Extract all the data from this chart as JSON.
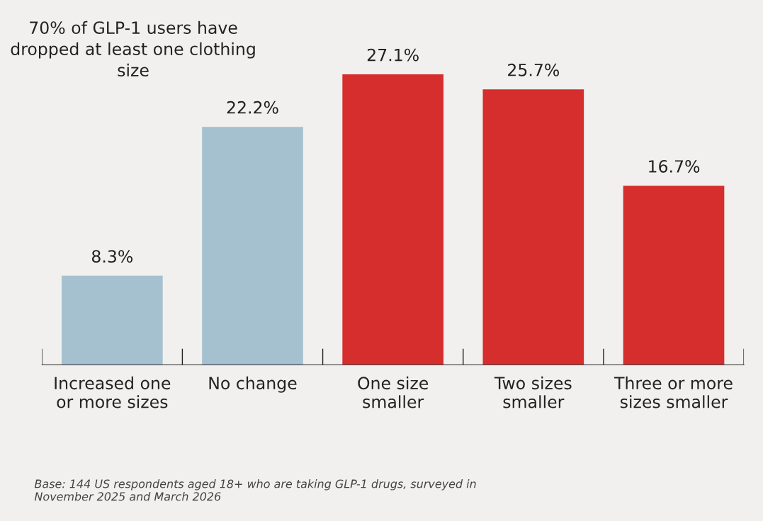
{
  "chart_data": {
    "type": "bar",
    "title": "70% of GLP-1 users have dropped at least one clothing size",
    "categories": [
      "Increased one\nor more sizes",
      "No change",
      "One size\nsmaller",
      "Two sizes\nsmaller",
      "Three or more\nsizes smaller"
    ],
    "values": [
      8.3,
      22.2,
      27.1,
      25.7,
      16.7
    ],
    "colors": [
      "#a5c1cf",
      "#a5c1cf",
      "#d62d2d",
      "#d62d2d",
      "#d62d2d"
    ],
    "value_labels": [
      "8.3%",
      "22.2%",
      "27.1%",
      "25.7%",
      "16.7%"
    ],
    "annotations": [
      "Base: 144 US respondents aged 18+ who are taking GLP-1 drugs, surveyed in\nNovember 2025 and March 2026"
    ],
    "grid": false,
    "legend": false
  }
}
